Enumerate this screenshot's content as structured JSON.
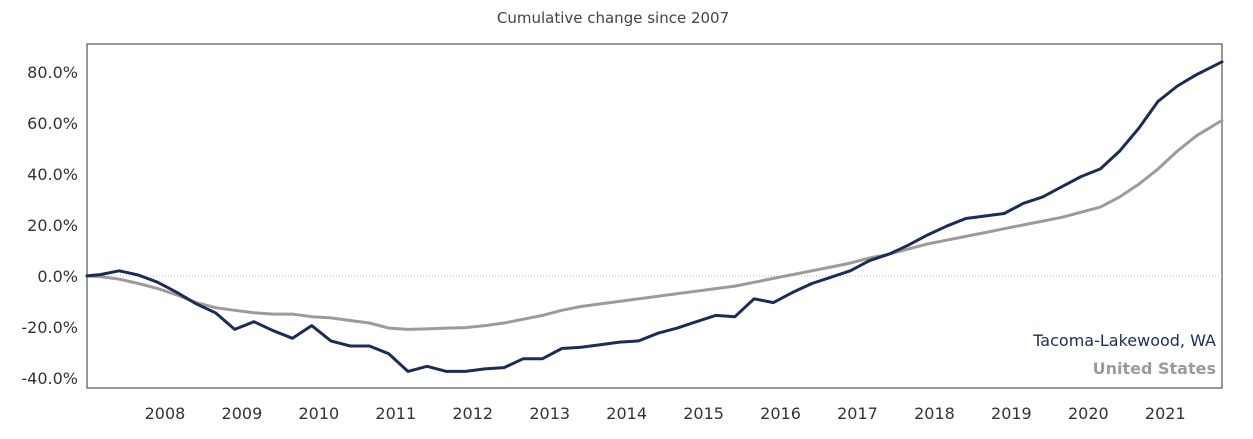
{
  "chart_data": {
    "type": "line",
    "title": "Cumulative change since 2007",
    "xlabel": "",
    "ylabel": "",
    "y_tick_labels": [
      "-40.0%",
      "-20.0%",
      "0.0%",
      "20.0%",
      "40.0%",
      "60.0%",
      "80.0%"
    ],
    "y_ticks": [
      -40,
      -20,
      0,
      20,
      40,
      60,
      80
    ],
    "x_tick_labels": [
      "2008",
      "2009",
      "2010",
      "2011",
      "2012",
      "2013",
      "2014",
      "2015",
      "2016",
      "2017",
      "2018",
      "2019",
      "2020",
      "2021"
    ],
    "x_ticks": [
      2008,
      2009,
      2010,
      2011,
      2012,
      2013,
      2014,
      2015,
      2016,
      2017,
      2018,
      2019,
      2020,
      2021
    ],
    "xlim": [
      2007.0,
      2021.75
    ],
    "ylim": [
      -44,
      91
    ],
    "zero_reference_line": true,
    "legend_position": "bottom-right",
    "x": [
      2007.0,
      2007.17,
      2007.42,
      2007.67,
      2007.92,
      2008.17,
      2008.42,
      2008.67,
      2008.92,
      2009.17,
      2009.42,
      2009.67,
      2009.92,
      2010.17,
      2010.42,
      2010.67,
      2010.92,
      2011.17,
      2011.42,
      2011.67,
      2011.92,
      2012.17,
      2012.42,
      2012.67,
      2012.92,
      2013.17,
      2013.42,
      2013.67,
      2013.92,
      2014.17,
      2014.42,
      2014.67,
      2014.92,
      2015.17,
      2015.42,
      2015.67,
      2015.92,
      2016.17,
      2016.42,
      2016.67,
      2016.92,
      2017.17,
      2017.42,
      2017.67,
      2017.92,
      2018.17,
      2018.42,
      2018.67,
      2018.92,
      2019.17,
      2019.42,
      2019.67,
      2019.92,
      2020.17,
      2020.42,
      2020.67,
      2020.92,
      2021.17,
      2021.42,
      2021.75
    ],
    "series": [
      {
        "name": "Tacoma-Lakewood, WA",
        "color": "#1b2d57",
        "values": [
          0.0,
          0.5,
          2.0,
          0.3,
          -2.5,
          -6.5,
          -11.0,
          -14.5,
          -21.0,
          -18.0,
          -21.5,
          -24.5,
          -19.5,
          -25.5,
          -27.5,
          -27.5,
          -30.5,
          -37.5,
          -35.5,
          -37.5,
          -37.5,
          -36.5,
          -36.0,
          -32.5,
          -32.5,
          -28.5,
          -28.0,
          -27.0,
          -26.0,
          -25.5,
          -22.5,
          -20.5,
          -18.0,
          -15.5,
          -16.0,
          -9.0,
          -10.5,
          -6.5,
          -3.0,
          -0.5,
          2.0,
          6.0,
          8.5,
          12.0,
          16.0,
          19.5,
          22.5,
          23.5,
          24.5,
          28.5,
          31.0,
          35.0,
          39.0,
          42.0,
          49.0,
          58.0,
          68.5,
          74.5,
          79.0,
          84.0
        ]
      },
      {
        "name": "United States",
        "color": "#a09a97",
        "values": [
          0.0,
          -0.3,
          -1.3,
          -3.0,
          -5.0,
          -7.5,
          -10.5,
          -12.5,
          -13.5,
          -14.5,
          -15.0,
          -15.0,
          -16.0,
          -16.5,
          -17.5,
          -18.5,
          -20.5,
          -21.0,
          -20.8,
          -20.5,
          -20.3,
          -19.5,
          -18.5,
          -17.0,
          -15.5,
          -13.5,
          -12.0,
          -11.0,
          -10.0,
          -9.0,
          -8.0,
          -7.0,
          -6.0,
          -5.0,
          -4.0,
          -2.5,
          -1.0,
          0.5,
          2.0,
          3.5,
          5.0,
          7.0,
          8.5,
          10.5,
          12.5,
          14.0,
          15.5,
          17.0,
          18.5,
          20.0,
          21.5,
          23.0,
          25.0,
          27.0,
          31.0,
          36.0,
          42.0,
          49.0,
          55.0,
          61.0
        ]
      }
    ]
  }
}
